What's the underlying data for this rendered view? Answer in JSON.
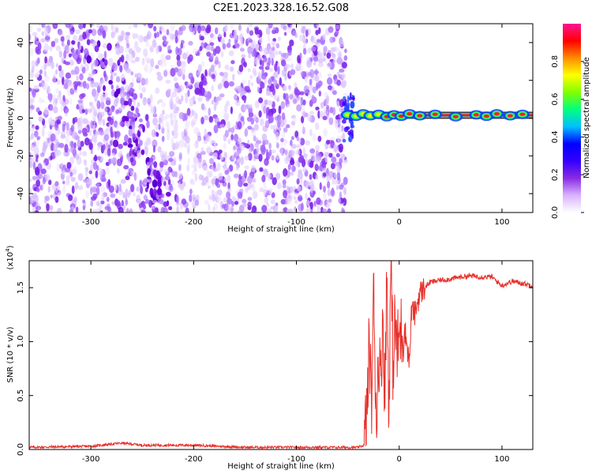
{
  "title": "C2E1.2023.328.16.52.G08",
  "chart_data": [
    {
      "type": "heatmap",
      "xlabel": "Height of straight line (km)",
      "ylabel": "Frequency (Hz)",
      "xlim": [
        -360,
        130
      ],
      "ylim": [
        -50,
        50
      ],
      "xticks": [
        -300,
        -200,
        -100,
        0,
        100
      ],
      "yticks": [
        -40,
        -20,
        0,
        20,
        40
      ],
      "colorbar": {
        "label": "Normalized spectral amplitude",
        "range": [
          0.0,
          1.0
        ],
        "ticks": [
          0.0,
          0.2,
          0.4,
          0.6,
          0.8
        ],
        "tick_labels": [
          "0.0",
          "0.2",
          "0.4",
          "0.6",
          "0.8"
        ],
        "colors": [
          "#ffffff",
          "#d9b3ff",
          "#8a2be2",
          "#3300ff",
          "#0000ff",
          "#00bfff",
          "#00ff7f",
          "#7fff00",
          "#ffff00",
          "#ff8c00",
          "#ff0000",
          "#ff1493"
        ]
      },
      "features": {
        "noise_region_x": [
          -360,
          -52
        ],
        "noise_diagonal_band": {
          "x_at_top": -305,
          "x_at_bottom": -230
        },
        "noise_diagonal_gap": {
          "x_at_top": -262,
          "x_at_bottom": -182
        },
        "signal_start_x": -52,
        "signal_frequency": 1.5,
        "signal_peak_amplitude": 1.0
      },
      "colors": {
        "noise": "#7a00e6",
        "signal_core": "#ff1a1a"
      }
    },
    {
      "type": "line",
      "xlabel": "Height of straight line (km)",
      "ylabel": "SNR (10 * v/v)",
      "y_multiplier": "(x10",
      "y_multiplier_exp": "4",
      "y_multiplier_close": ")",
      "xlim": [
        -360,
        130
      ],
      "ylim": [
        0.0,
        1.75
      ],
      "xticks": [
        -300,
        -200,
        -100,
        0,
        100
      ],
      "yticks": [
        0.0,
        0.5,
        1.0,
        1.5
      ],
      "ytick_labels": [
        "0.0",
        "0.5",
        "1.0",
        "1.5"
      ],
      "series": [
        {
          "color": "#e8302a",
          "points": [
            [
              -360,
              0.02
            ],
            [
              -300,
              0.03
            ],
            [
              -270,
              0.06
            ],
            [
              -250,
              0.04
            ],
            [
              -200,
              0.04
            ],
            [
              -150,
              0.02
            ],
            [
              -100,
              0.02
            ],
            [
              -60,
              0.02
            ],
            [
              -40,
              0.02
            ],
            [
              -34,
              0.04
            ],
            [
              -31,
              0.4
            ],
            [
              -29,
              1.05
            ],
            [
              -27,
              0.35
            ],
            [
              -25,
              1.45
            ],
            [
              -22,
              0.25
            ],
            [
              -20,
              0.95
            ],
            [
              -18,
              0.6
            ],
            [
              -16,
              1.3
            ],
            [
              -14,
              0.5
            ],
            [
              -12,
              1.65
            ],
            [
              -10,
              0.35
            ],
            [
              -8,
              1.75
            ],
            [
              -6,
              0.75
            ],
            [
              -4,
              1.2
            ],
            [
              -2,
              0.9
            ],
            [
              0,
              1.05
            ],
            [
              5,
              1.15
            ],
            [
              10,
              0.8
            ],
            [
              12,
              1.3
            ],
            [
              15,
              1.25
            ],
            [
              20,
              1.45
            ],
            [
              25,
              1.5
            ],
            [
              30,
              1.55
            ],
            [
              40,
              1.57
            ],
            [
              50,
              1.58
            ],
            [
              60,
              1.6
            ],
            [
              70,
              1.61
            ],
            [
              80,
              1.6
            ],
            [
              90,
              1.6
            ],
            [
              96,
              1.55
            ],
            [
              100,
              1.52
            ],
            [
              110,
              1.56
            ],
            [
              120,
              1.54
            ],
            [
              130,
              1.52
            ]
          ]
        }
      ]
    }
  ]
}
